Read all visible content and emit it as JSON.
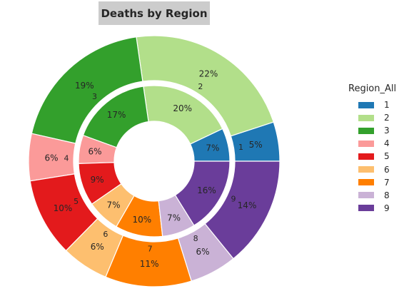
{
  "chart_data": {
    "type": "pie",
    "subtype": "nested-donut",
    "title": "Deaths by Region",
    "legend": {
      "title": "Region_All",
      "placement": "right",
      "entries": [
        "1",
        "2",
        "3",
        "4",
        "5",
        "6",
        "7",
        "8",
        "9"
      ]
    },
    "categories": [
      "1",
      "2",
      "3",
      "4",
      "5",
      "6",
      "7",
      "8",
      "9"
    ],
    "colors": [
      "#1f78b4",
      "#b2df8a",
      "#33a02c",
      "#fb9a99",
      "#e31a1c",
      "#fdbf6f",
      "#ff7f00",
      "#cab2d6",
      "#6a3d9a"
    ],
    "outer": {
      "values": [
        5,
        22,
        19,
        6,
        10,
        6,
        11,
        6,
        14
      ],
      "labels": [
        "5%",
        "22%",
        "19%",
        "6%",
        "10%",
        "6%",
        "11%",
        "6%",
        "14%"
      ]
    },
    "inner": {
      "values": [
        7,
        20,
        17,
        6,
        9,
        7,
        10,
        7,
        16
      ],
      "labels": [
        "7%",
        "20%",
        "17%",
        "6%",
        "9%",
        "7%",
        "10%",
        "7%",
        "16%"
      ]
    }
  }
}
